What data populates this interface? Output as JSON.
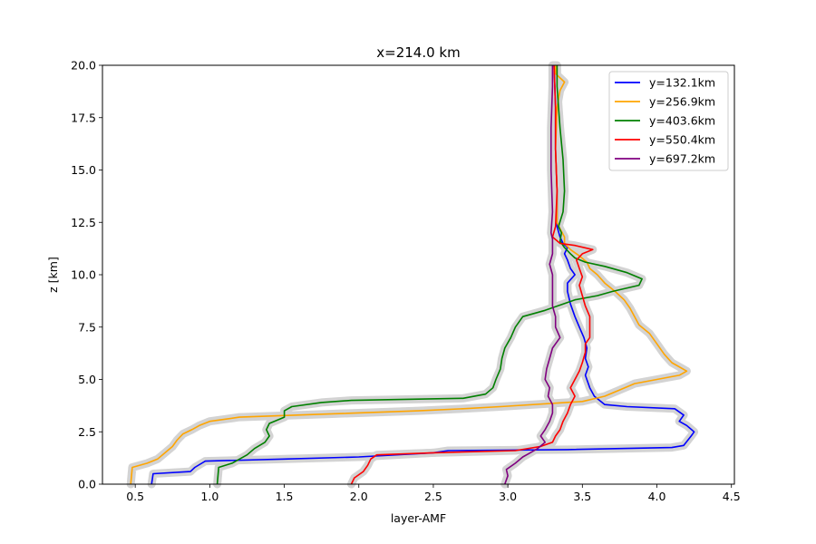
{
  "chart_data": {
    "type": "line",
    "title": "x=214.0 km",
    "xlabel": "layer-AMF",
    "ylabel": "z [km]",
    "xlim": [
      0.28,
      4.52
    ],
    "ylim": [
      0,
      20
    ],
    "xticks": [
      "0.5",
      "1.0",
      "1.5",
      "2.0",
      "2.5",
      "3.0",
      "3.5",
      "4.0",
      "4.5"
    ],
    "xtick_values": [
      0.5,
      1.0,
      1.5,
      2.0,
      2.5,
      3.0,
      3.5,
      4.0,
      4.5
    ],
    "yticks": [
      "0.0",
      "2.5",
      "5.0",
      "7.5",
      "10.0",
      "12.5",
      "15.0",
      "17.5",
      "20.0"
    ],
    "ytick_values": [
      0,
      2.5,
      5.0,
      7.5,
      10.0,
      12.5,
      15.0,
      17.5,
      20.0
    ],
    "grid": false,
    "legend_position": "top-right",
    "uncertainty_color": "#d3d3d3",
    "series": [
      {
        "name": "y=132.1km",
        "color": "#0000ff",
        "points": [
          [
            0.61,
            0
          ],
          [
            0.62,
            0.5
          ],
          [
            0.87,
            0.6
          ],
          [
            0.9,
            0.8
          ],
          [
            0.97,
            1.1
          ],
          [
            1.5,
            1.2
          ],
          [
            2.0,
            1.3
          ],
          [
            2.5,
            1.5
          ],
          [
            2.6,
            1.6
          ],
          [
            3.4,
            1.65
          ],
          [
            4.1,
            1.75
          ],
          [
            4.18,
            1.85
          ],
          [
            4.23,
            2.3
          ],
          [
            4.25,
            2.5
          ],
          [
            4.2,
            2.8
          ],
          [
            4.15,
            3.0
          ],
          [
            4.18,
            3.3
          ],
          [
            4.12,
            3.6
          ],
          [
            3.8,
            3.7
          ],
          [
            3.65,
            3.8
          ],
          [
            3.58,
            4.2
          ],
          [
            3.55,
            4.6
          ],
          [
            3.52,
            5.2
          ],
          [
            3.54,
            5.6
          ],
          [
            3.52,
            6.0
          ],
          [
            3.53,
            6.5
          ],
          [
            3.51,
            7.0
          ],
          [
            3.48,
            7.5
          ],
          [
            3.45,
            8.0
          ],
          [
            3.42,
            8.6
          ],
          [
            3.4,
            9.2
          ],
          [
            3.4,
            9.6
          ],
          [
            3.45,
            10.0
          ],
          [
            3.42,
            10.3
          ],
          [
            3.4,
            10.7
          ],
          [
            3.38,
            11.0
          ],
          [
            3.4,
            11.3
          ],
          [
            3.37,
            11.5
          ],
          [
            3.35,
            11.8
          ],
          [
            3.33,
            12.3
          ],
          [
            3.33,
            14
          ],
          [
            3.32,
            16
          ],
          [
            3.32,
            18
          ],
          [
            3.31,
            20
          ]
        ]
      },
      {
        "name": "y=256.9km",
        "color": "#ffa500",
        "points": [
          [
            0.47,
            0
          ],
          [
            0.48,
            0.8
          ],
          [
            0.58,
            1.0
          ],
          [
            0.65,
            1.2
          ],
          [
            0.7,
            1.5
          ],
          [
            0.75,
            1.8
          ],
          [
            0.78,
            2.1
          ],
          [
            0.82,
            2.4
          ],
          [
            0.88,
            2.6
          ],
          [
            0.93,
            2.8
          ],
          [
            1.0,
            3.0
          ],
          [
            1.2,
            3.2
          ],
          [
            1.8,
            3.35
          ],
          [
            2.4,
            3.5
          ],
          [
            2.7,
            3.6
          ],
          [
            2.95,
            3.7
          ],
          [
            3.5,
            3.95
          ],
          [
            3.65,
            4.2
          ],
          [
            3.75,
            4.5
          ],
          [
            3.85,
            4.8
          ],
          [
            4.0,
            5.0
          ],
          [
            4.15,
            5.2
          ],
          [
            4.2,
            5.4
          ],
          [
            4.1,
            5.8
          ],
          [
            4.05,
            6.2
          ],
          [
            4.0,
            6.7
          ],
          [
            3.95,
            7.2
          ],
          [
            3.88,
            7.6
          ],
          [
            3.85,
            8.0
          ],
          [
            3.82,
            8.4
          ],
          [
            3.78,
            8.8
          ],
          [
            3.72,
            9.2
          ],
          [
            3.65,
            9.6
          ],
          [
            3.6,
            10.0
          ],
          [
            3.55,
            10.3
          ],
          [
            3.53,
            10.6
          ],
          [
            3.48,
            10.9
          ],
          [
            3.42,
            11.2
          ],
          [
            3.38,
            11.5
          ],
          [
            3.38,
            11.8
          ],
          [
            3.35,
            12.2
          ],
          [
            3.33,
            12.5
          ],
          [
            3.33,
            14
          ],
          [
            3.32,
            16
          ],
          [
            3.33,
            18
          ],
          [
            3.35,
            18.8
          ],
          [
            3.38,
            19.2
          ],
          [
            3.32,
            19.6
          ],
          [
            3.32,
            20
          ]
        ]
      },
      {
        "name": "y=403.6km",
        "color": "#008000",
        "points": [
          [
            1.05,
            0
          ],
          [
            1.06,
            0.8
          ],
          [
            1.15,
            1.0
          ],
          [
            1.25,
            1.4
          ],
          [
            1.3,
            1.7
          ],
          [
            1.37,
            2.0
          ],
          [
            1.4,
            2.3
          ],
          [
            1.38,
            2.6
          ],
          [
            1.4,
            2.9
          ],
          [
            1.5,
            3.2
          ],
          [
            1.5,
            3.5
          ],
          [
            1.55,
            3.7
          ],
          [
            1.75,
            3.9
          ],
          [
            1.95,
            4.0
          ],
          [
            2.7,
            4.1
          ],
          [
            2.85,
            4.3
          ],
          [
            2.9,
            4.6
          ],
          [
            2.92,
            5.0
          ],
          [
            2.95,
            5.5
          ],
          [
            2.96,
            6.0
          ],
          [
            2.98,
            6.5
          ],
          [
            3.02,
            7.0
          ],
          [
            3.05,
            7.5
          ],
          [
            3.1,
            8.0
          ],
          [
            3.25,
            8.3
          ],
          [
            3.45,
            8.8
          ],
          [
            3.6,
            9.0
          ],
          [
            3.7,
            9.2
          ],
          [
            3.88,
            9.5
          ],
          [
            3.9,
            9.8
          ],
          [
            3.8,
            10.1
          ],
          [
            3.65,
            10.4
          ],
          [
            3.52,
            10.6
          ],
          [
            3.45,
            10.8
          ],
          [
            3.42,
            11.0
          ],
          [
            3.38,
            11.3
          ],
          [
            3.35,
            11.6
          ],
          [
            3.36,
            12.0
          ],
          [
            3.34,
            12.3
          ],
          [
            3.37,
            13
          ],
          [
            3.38,
            14.0
          ],
          [
            3.37,
            15.5
          ],
          [
            3.35,
            17
          ],
          [
            3.34,
            18
          ],
          [
            3.33,
            19
          ],
          [
            3.33,
            20
          ]
        ]
      },
      {
        "name": "y=550.4km",
        "color": "#ff0000",
        "points": [
          [
            1.95,
            0
          ],
          [
            1.97,
            0.3
          ],
          [
            2.03,
            0.6
          ],
          [
            2.06,
            0.9
          ],
          [
            2.08,
            1.2
          ],
          [
            2.12,
            1.4
          ],
          [
            2.5,
            1.5
          ],
          [
            3.05,
            1.6
          ],
          [
            3.22,
            1.8
          ],
          [
            3.3,
            2.0
          ],
          [
            3.32,
            2.3
          ],
          [
            3.35,
            2.6
          ],
          [
            3.37,
            3.0
          ],
          [
            3.4,
            3.4
          ],
          [
            3.42,
            3.8
          ],
          [
            3.45,
            4.2
          ],
          [
            3.42,
            4.6
          ],
          [
            3.45,
            5.0
          ],
          [
            3.48,
            5.4
          ],
          [
            3.5,
            5.8
          ],
          [
            3.52,
            6.3
          ],
          [
            3.52,
            6.7
          ],
          [
            3.55,
            7.0
          ],
          [
            3.55,
            7.5
          ],
          [
            3.55,
            8.0
          ],
          [
            3.52,
            8.5
          ],
          [
            3.5,
            9.0
          ],
          [
            3.48,
            9.5
          ],
          [
            3.5,
            9.9
          ],
          [
            3.48,
            10.3
          ],
          [
            3.46,
            10.7
          ],
          [
            3.5,
            11.0
          ],
          [
            3.57,
            11.2
          ],
          [
            3.45,
            11.4
          ],
          [
            3.35,
            11.5
          ],
          [
            3.3,
            11.8
          ],
          [
            3.32,
            12.3
          ],
          [
            3.33,
            14
          ],
          [
            3.32,
            16
          ],
          [
            3.32,
            18
          ],
          [
            3.31,
            20
          ]
        ]
      },
      {
        "name": "y=697.2km",
        "color": "#800080",
        "points": [
          [
            2.98,
            0
          ],
          [
            3.0,
            0.4
          ],
          [
            2.99,
            0.7
          ],
          [
            3.05,
            1.0
          ],
          [
            3.1,
            1.3
          ],
          [
            3.15,
            1.5
          ],
          [
            3.2,
            1.7
          ],
          [
            3.25,
            2.0
          ],
          [
            3.22,
            2.3
          ],
          [
            3.25,
            2.6
          ],
          [
            3.28,
            3.0
          ],
          [
            3.3,
            3.4
          ],
          [
            3.3,
            3.8
          ],
          [
            3.27,
            4.2
          ],
          [
            3.28,
            4.6
          ],
          [
            3.25,
            5.0
          ],
          [
            3.26,
            5.5
          ],
          [
            3.28,
            6.0
          ],
          [
            3.3,
            6.5
          ],
          [
            3.35,
            7.0
          ],
          [
            3.32,
            7.5
          ],
          [
            3.32,
            8.0
          ],
          [
            3.3,
            8.5
          ],
          [
            3.3,
            9.0
          ],
          [
            3.3,
            9.5
          ],
          [
            3.3,
            10.0
          ],
          [
            3.28,
            10.5
          ],
          [
            3.3,
            11.0
          ],
          [
            3.3,
            11.3
          ],
          [
            3.3,
            11.7
          ],
          [
            3.29,
            12.0
          ],
          [
            3.3,
            13
          ],
          [
            3.29,
            15
          ],
          [
            3.29,
            17
          ],
          [
            3.3,
            19
          ],
          [
            3.3,
            20
          ]
        ]
      }
    ]
  }
}
